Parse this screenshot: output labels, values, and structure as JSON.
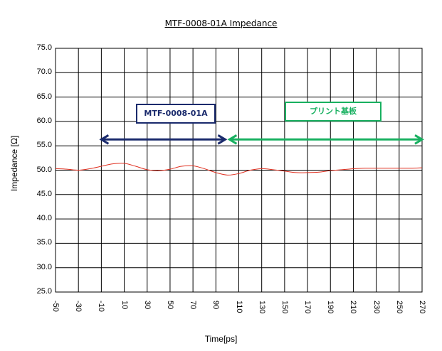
{
  "chart_data": {
    "type": "line",
    "title": "MTF-0008-01A Impedance",
    "xlabel": "Time[ps]",
    "ylabel": "Impedance [Ω]",
    "xlim": [
      -50,
      270
    ],
    "ylim": [
      25,
      75
    ],
    "x_ticks": [
      "-50",
      "-30",
      "-10",
      "10",
      "30",
      "50",
      "70",
      "90",
      "110",
      "130",
      "150",
      "170",
      "190",
      "210",
      "230",
      "250",
      "270"
    ],
    "y_ticks": [
      "25.0",
      "30.0",
      "35.0",
      "40.0",
      "45.0",
      "50.0",
      "55.0",
      "60.0",
      "65.0",
      "70.0",
      "75.0"
    ],
    "grid": true,
    "series": [
      {
        "color": "#e03020",
        "x": [
          -50,
          -40,
          -30,
          -20,
          -10,
          0,
          10,
          20,
          30,
          40,
          50,
          60,
          70,
          80,
          90,
          100,
          110,
          120,
          130,
          140,
          150,
          160,
          170,
          180,
          190,
          200,
          210,
          220,
          230,
          240,
          250,
          260,
          270
        ],
        "y": [
          50.3,
          50.2,
          50.0,
          50.3,
          50.8,
          51.3,
          51.4,
          50.8,
          50.1,
          49.9,
          50.2,
          50.8,
          50.9,
          50.3,
          49.5,
          49.0,
          49.3,
          50.0,
          50.3,
          50.1,
          49.8,
          49.5,
          49.5,
          49.6,
          49.9,
          50.1,
          50.3,
          50.4,
          50.4,
          50.4,
          50.4,
          50.4,
          50.5
        ]
      }
    ],
    "annotations": [
      {
        "label": "MTF-0008-01A",
        "from": -10,
        "to": 100,
        "y": 56.3,
        "color": "#1a2a6c"
      },
      {
        "label": "プリント基板",
        "from": 100,
        "to": 270,
        "y": 56.3,
        "color": "#18b060"
      }
    ]
  }
}
